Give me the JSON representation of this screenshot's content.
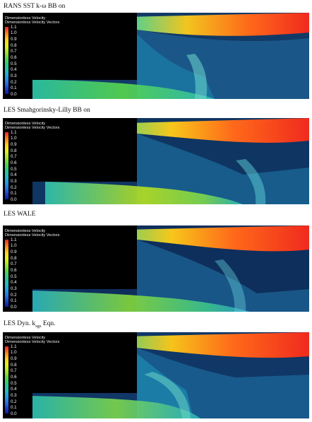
{
  "panels": [
    {
      "title_main": "RANS SST k-ω BB on",
      "title_sub": ""
    },
    {
      "title_main": "LES Smahgorinsky-Lilly BB on",
      "title_sub": ""
    },
    {
      "title_main": "LES WALE",
      "title_sub": ""
    },
    {
      "title_main": "LES Dyn. k",
      "title_sub": "sgs",
      "title_tail": " Eqn."
    }
  ],
  "legend": {
    "title_line1": "Dimensionless Velocity",
    "title_line2": "Dimensionless Velocity Vectors",
    "ticks": [
      "1.1",
      "1.0",
      "0.9",
      "0.8",
      "0.7",
      "0.6",
      "0.5",
      "0.4",
      "0.3",
      "0.2",
      "0.1",
      "0.0"
    ]
  }
}
